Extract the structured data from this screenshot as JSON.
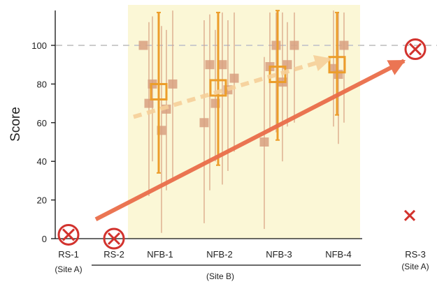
{
  "chart_data": {
    "type": "scatter",
    "ylabel": "Score",
    "ylim": [
      0,
      118
    ],
    "yticks": [
      0,
      20,
      40,
      60,
      80,
      100
    ],
    "reference_line": 100,
    "categories": [
      {
        "key": "RS-1",
        "label": "RS-1",
        "sublabel": "(Site A)"
      },
      {
        "key": "RS-2",
        "label": "RS-2",
        "sublabel": ""
      },
      {
        "key": "NFB-1",
        "label": "NFB-1",
        "sublabel": ""
      },
      {
        "key": "NFB-2",
        "label": "NFB-2",
        "sublabel": ""
      },
      {
        "key": "NFB-3",
        "label": "NFB-3",
        "sublabel": ""
      },
      {
        "key": "NFB-4",
        "label": "NFB-4",
        "sublabel": ""
      },
      {
        "key": "RS-3",
        "label": "RS-3",
        "sublabel": "(Site A)"
      }
    ],
    "group_label": "(Site B)",
    "shaded_region": [
      "NFB-1",
      "NFB-4"
    ],
    "individual_points": {
      "NFB-1": [
        {
          "y": 100,
          "lo": 100,
          "hi": 100
        },
        {
          "y": 80,
          "lo": 40,
          "hi": 115
        },
        {
          "y": 70,
          "lo": 22,
          "hi": 112
        },
        {
          "y": 67,
          "lo": 25,
          "hi": 108
        },
        {
          "y": 56,
          "lo": 3,
          "hi": 110
        },
        {
          "y": 80,
          "lo": 30,
          "hi": 118
        }
      ],
      "NFB-2": [
        {
          "y": 60,
          "lo": 8,
          "hi": 113
        },
        {
          "y": 90,
          "lo": 25,
          "hi": 116
        },
        {
          "y": 70,
          "lo": 40,
          "hi": 108
        },
        {
          "y": 90,
          "lo": 28,
          "hi": 117
        },
        {
          "y": 77,
          "lo": 35,
          "hi": 113
        },
        {
          "y": 83,
          "lo": 45,
          "hi": 117
        }
      ],
      "NFB-3": [
        {
          "y": 50,
          "lo": 5,
          "hi": 94
        },
        {
          "y": 89,
          "lo": 55,
          "hi": 117
        },
        {
          "y": 100,
          "lo": 55,
          "hi": 117
        },
        {
          "y": 81,
          "lo": 40,
          "hi": 117
        },
        {
          "y": 90,
          "lo": 58,
          "hi": 112
        },
        {
          "y": 100,
          "lo": 60,
          "hi": 117
        }
      ],
      "NFB-4": [
        {
          "y": 88,
          "lo": 58,
          "hi": 118
        },
        {
          "y": 85,
          "lo": 49,
          "hi": 117
        },
        {
          "y": 100,
          "lo": 60,
          "hi": 117
        }
      ]
    },
    "means": [
      {
        "category": "NFB-1",
        "mean": 76,
        "lo": 34,
        "hi": 117
      },
      {
        "category": "NFB-2",
        "mean": 78,
        "lo": 38,
        "hi": 117
      },
      {
        "category": "NFB-3",
        "mean": 85,
        "lo": 51,
        "hi": 118
      },
      {
        "category": "NFB-4",
        "mean": 90,
        "lo": 64,
        "hi": 117
      }
    ],
    "circled_x_markers": [
      {
        "category": "RS-1",
        "y": 2
      },
      {
        "category": "RS-2",
        "y": 0
      },
      {
        "category": "RS-3",
        "y": 98
      }
    ],
    "plain_x_markers": [
      {
        "category": "RS-3",
        "y": 12
      }
    ],
    "trend_arrows": [
      {
        "style": "solid",
        "from_category": "RS-2",
        "from_y": 10,
        "to_category": "RS-3",
        "to_y": 92
      },
      {
        "style": "dashed",
        "from_category": "NFB-1",
        "from_y": 63,
        "to_category": "NFB-4",
        "to_y": 93
      }
    ],
    "colors": {
      "shade": "#fbf7d6",
      "individual": "#d8a080",
      "mean": "#ec9d2a",
      "solid_arrow": "#ea6e4a",
      "dashed_arrow": "#f6d09a",
      "marker": "#d2322d",
      "reference": "#cccccc"
    }
  }
}
